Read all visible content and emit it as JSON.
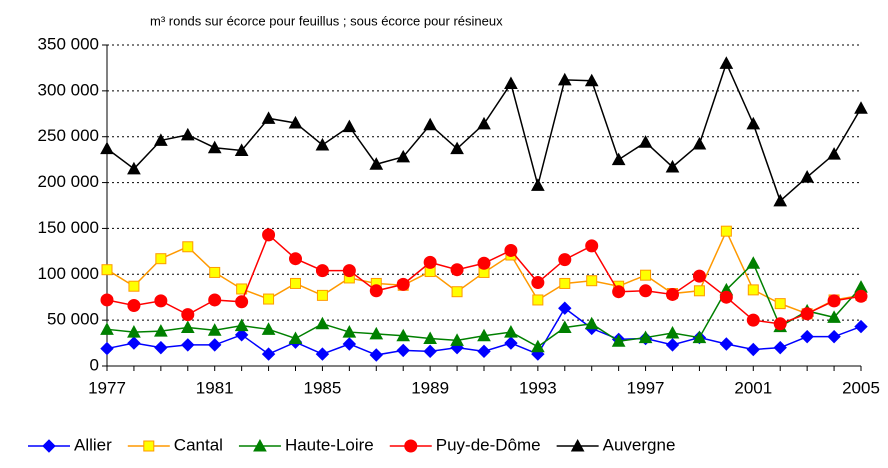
{
  "chart_data": {
    "type": "line",
    "y_label": "m³ ronds sur écorce pour feuillus ; sous écorce pour résineux",
    "x": [
      1977,
      1978,
      1979,
      1980,
      1981,
      1982,
      1983,
      1984,
      1985,
      1986,
      1987,
      1988,
      1989,
      1990,
      1991,
      1992,
      1993,
      1994,
      1995,
      1996,
      1997,
      1998,
      1999,
      2000,
      2001,
      2002,
      2003,
      2004,
      2005
    ],
    "xlim": [
      1977,
      2005
    ],
    "xticks": [
      1977,
      1981,
      1985,
      1989,
      1993,
      1997,
      2001,
      2005
    ],
    "ylim": [
      0,
      350000
    ],
    "yticks": [
      0,
      {
        "value": 50000,
        "label": "50 000"
      },
      {
        "value": 100000,
        "label": "100 000"
      },
      {
        "value": 150000,
        "label": "150 000"
      },
      {
        "value": 200000,
        "label": "200 000"
      },
      {
        "value": 250000,
        "label": "250 000"
      },
      {
        "value": 300000,
        "label": "300 000"
      },
      {
        "value": 350000,
        "label": "350 000"
      }
    ],
    "grid": true,
    "legend": "bottom",
    "series": [
      {
        "name": "Allier",
        "color": "#0000ff",
        "fill": "#0000ff",
        "marker": "diamond",
        "values": [
          19000,
          25000,
          20000,
          23000,
          23000,
          34000,
          13000,
          26000,
          13000,
          24000,
          12000,
          17000,
          16000,
          20000,
          16000,
          25000,
          13000,
          63000,
          41000,
          29000,
          30000,
          23000,
          31000,
          24000,
          18000,
          20000,
          32000,
          32000,
          43000
        ]
      },
      {
        "name": "Cantal",
        "color": "#ff9900",
        "fill": "#ffff00",
        "marker": "square",
        "values": [
          105000,
          87000,
          117000,
          130000,
          102000,
          84000,
          73000,
          90000,
          77000,
          96000,
          90000,
          88000,
          103000,
          81000,
          102000,
          121000,
          72000,
          90000,
          93000,
          87000,
          99000,
          79000,
          82000,
          147000,
          83000,
          68000,
          57000,
          72000,
          77000
        ]
      },
      {
        "name": "Haute-Loire",
        "color": "#008000",
        "fill": "#008000",
        "marker": "triangle",
        "values": [
          40000,
          37000,
          38000,
          42000,
          39000,
          44000,
          40000,
          30000,
          46000,
          37000,
          35000,
          33000,
          30000,
          28000,
          33000,
          37000,
          21000,
          42000,
          46000,
          27000,
          31000,
          36000,
          31000,
          83000,
          112000,
          43000,
          60000,
          53000,
          86000
        ]
      },
      {
        "name": "Puy-de-Dôme",
        "color": "#ff0000",
        "fill": "#ff0000",
        "marker": "circle",
        "values": [
          72000,
          66000,
          71000,
          56000,
          72000,
          70000,
          143000,
          117000,
          104000,
          104000,
          82000,
          89000,
          113000,
          105000,
          112000,
          126000,
          91000,
          116000,
          131000,
          81000,
          82000,
          78000,
          98000,
          75000,
          50000,
          46000,
          57000,
          71000,
          76000
        ]
      },
      {
        "name": "Auvergne",
        "color": "#000000",
        "fill": "#000000",
        "marker": "triangle",
        "values": [
          237000,
          215000,
          246000,
          252000,
          238000,
          235000,
          270000,
          265000,
          241000,
          261000,
          220000,
          228000,
          263000,
          237000,
          264000,
          308000,
          197000,
          312000,
          311000,
          225000,
          244000,
          217000,
          242000,
          330000,
          264000,
          180000,
          206000,
          231000,
          281000
        ]
      }
    ]
  }
}
